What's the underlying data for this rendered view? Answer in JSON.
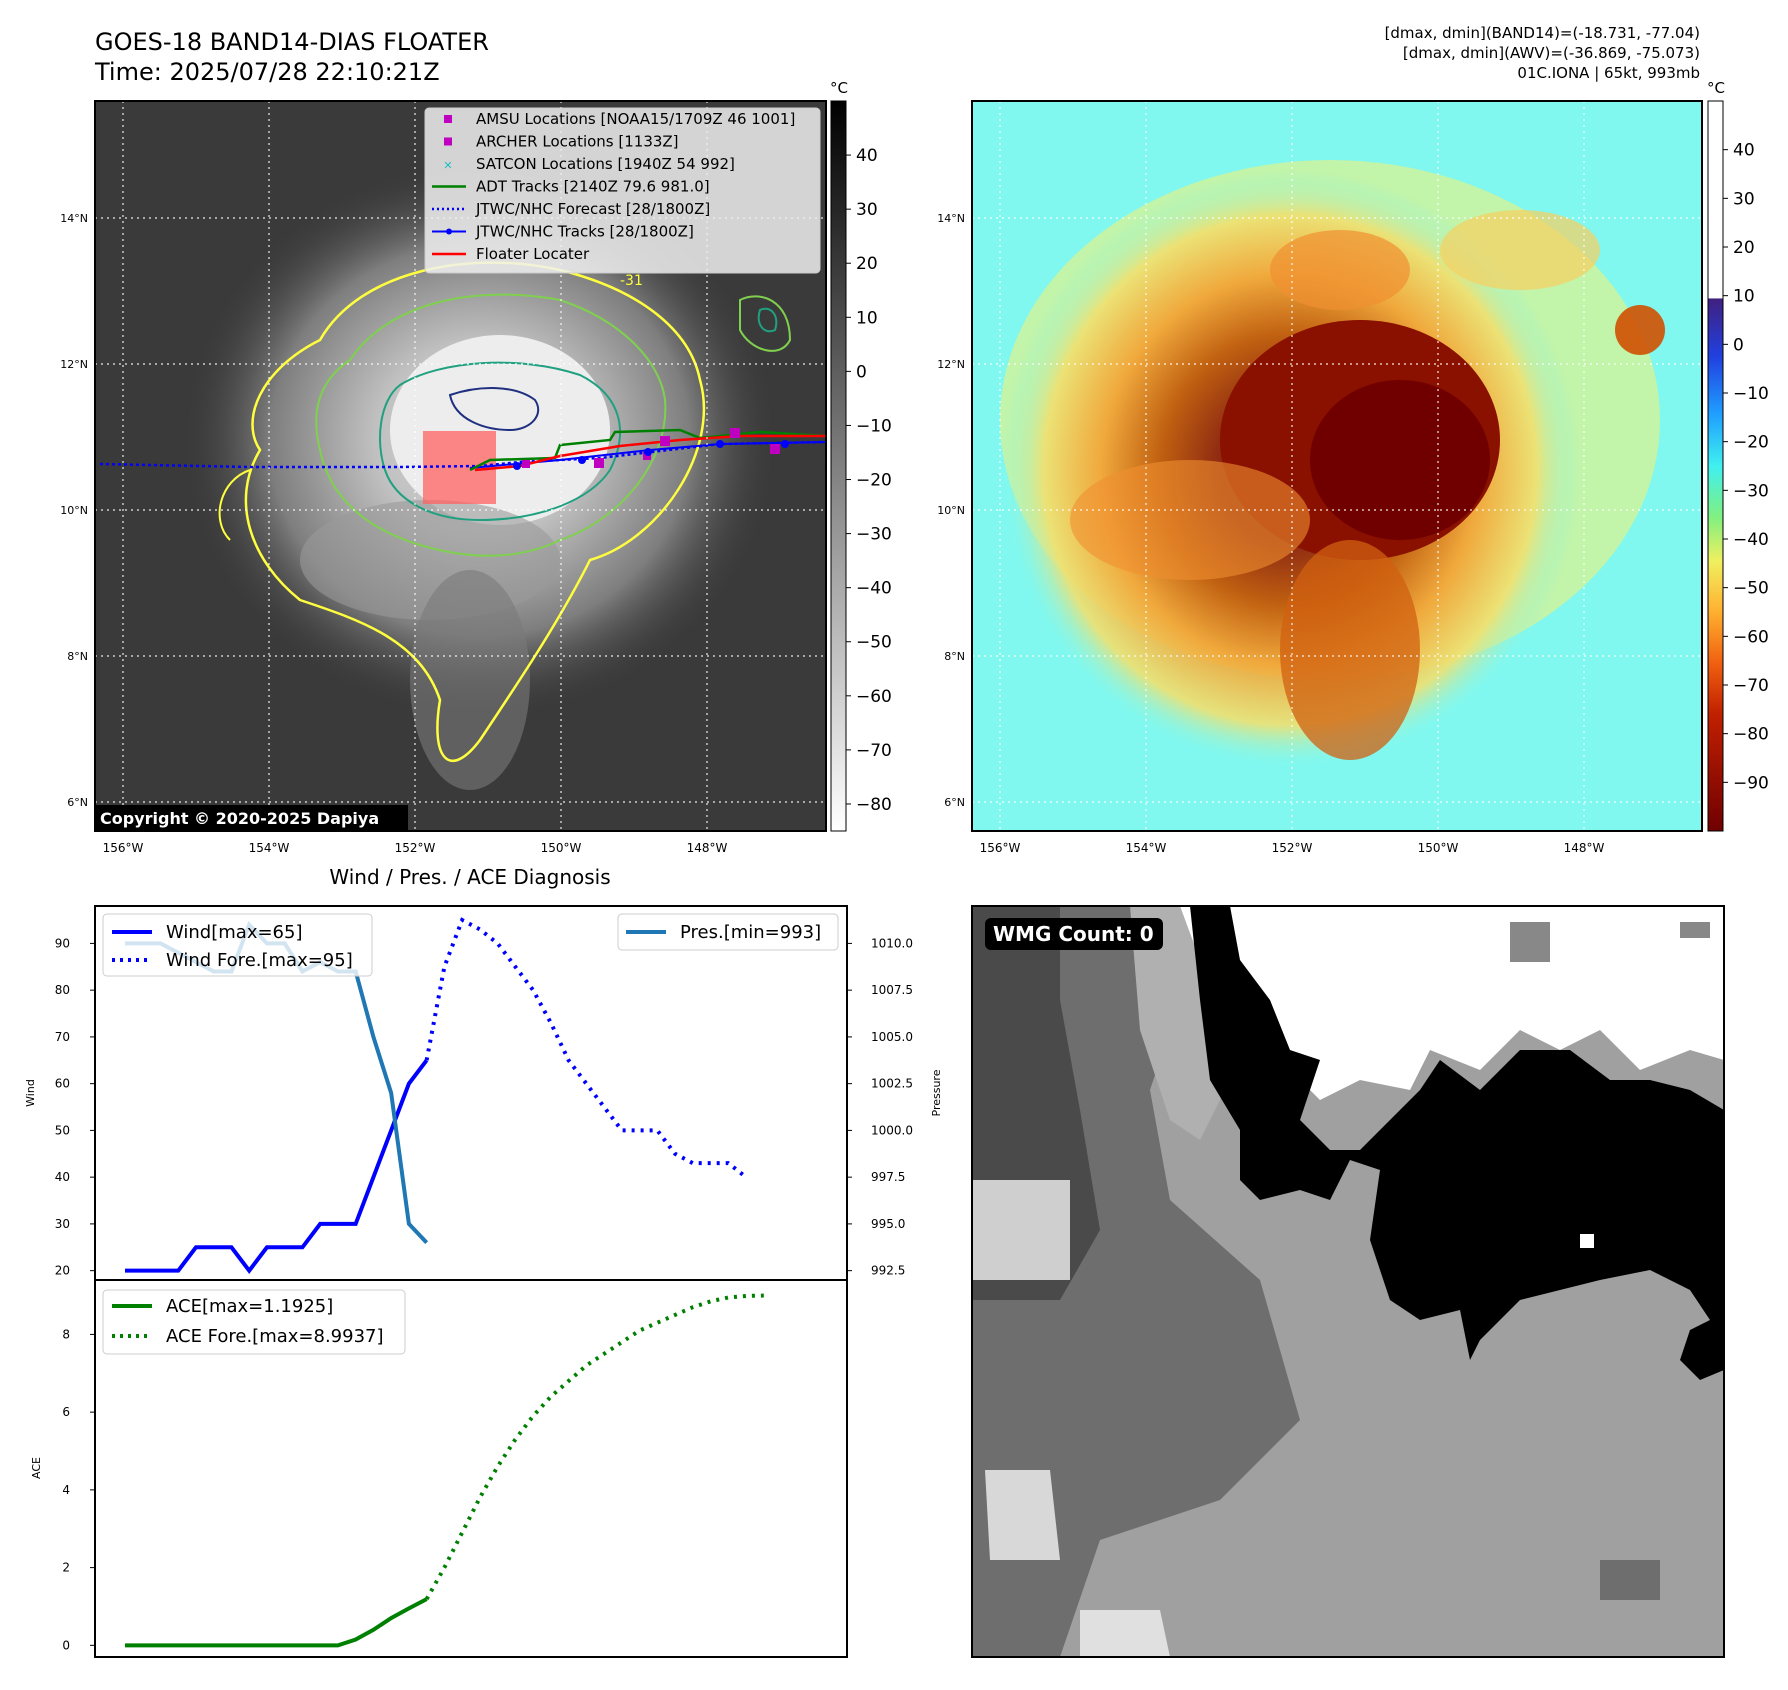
{
  "header": {
    "title_line1": "GOES-18 BAND14-DIAS FLOATER",
    "title_line2": "Time: 2025/07/28 22:10:21Z",
    "info_line1": "[dmax, dmin](BAND14)=(-18.731, -77.04)",
    "info_line2": "[dmax, dmin](AWV)=(-36.869, -75.073)",
    "info_line3": "01C.IONA | 65kt, 993mb"
  },
  "map": {
    "lat_labels": [
      "14°N",
      "12°N",
      "10°N",
      "8°N",
      "6°N"
    ],
    "lon_labels": [
      "156°W",
      "154°W",
      "152°W",
      "150°W",
      "148°W"
    ],
    "copyright": "Copyright © 2020-2025 Dapiya",
    "contour_label": "-31",
    "legend": [
      {
        "label": "AMSU Locations [NOAA15/1709Z 46 1001]",
        "color": "#c000c0",
        "marker": "square"
      },
      {
        "label": "ARCHER Locations [1133Z]",
        "color": "#c000c0",
        "marker": "square"
      },
      {
        "label": "SATCON Locations [1940Z 54 992]",
        "color": "#20c0c0",
        "marker": "x"
      },
      {
        "label": "ADT Tracks [2140Z 79.6 981.0]",
        "color": "#008000",
        "marker": "line"
      },
      {
        "label": "JTWC/NHC Forecast [28/1800Z]",
        "color": "#0000ff",
        "marker": "dotted"
      },
      {
        "label": "JTWC/NHC Tracks [28/1800Z]",
        "color": "#0000ff",
        "marker": "line-dot"
      },
      {
        "label": "Floater Locater",
        "color": "#ff0000",
        "marker": "line"
      }
    ]
  },
  "colorbar_gray": {
    "unit": "°C",
    "ticks": [
      "40",
      "30",
      "20",
      "10",
      "0",
      "−10",
      "−20",
      "−30",
      "−40",
      "−50",
      "−60",
      "−70",
      "−80"
    ]
  },
  "colorbar_color": {
    "unit": "°C",
    "ticks": [
      "40",
      "30",
      "20",
      "10",
      "0",
      "−10",
      "−20",
      "−30",
      "−40",
      "−50",
      "−60",
      "−70",
      "−80",
      "−90"
    ]
  },
  "wind_panel": {
    "title": "Wind / Pres. / ACE Diagnosis",
    "ylabel_left": "Wind",
    "ylabel_right": "Pressure",
    "left_ticks": [
      "90",
      "80",
      "70",
      "60",
      "50",
      "40",
      "30",
      "20"
    ],
    "right_ticks": [
      "1010.0",
      "1007.5",
      "1005.0",
      "1002.5",
      "1000.0",
      "997.5",
      "995.0",
      "992.5"
    ],
    "legend_wind": "Wind[max=65]",
    "legend_wind_fore": "Wind Fore.[max=95]",
    "legend_pres": "Pres.[min=993]"
  },
  "ace_panel": {
    "ylabel": "ACE",
    "ticks": [
      "8",
      "6",
      "4",
      "2",
      "0"
    ],
    "legend_ace": "ACE[max=1.1925]",
    "legend_ace_fore": "ACE Fore.[max=8.9937]"
  },
  "wmg_panel": {
    "badge": "WMG Count: 0"
  },
  "colors": {
    "wind": "#0000ff",
    "pressure": "#1f77b4",
    "ace": "#008000",
    "floater": "#ff0000",
    "contour_yellow": "#ffff40",
    "contour_green": "#80d050",
    "contour_teal": "#20a080",
    "contour_navy": "#203080"
  },
  "chart_data": [
    {
      "type": "line",
      "title": "Wind / Pres. / ACE Diagnosis",
      "ylabel": "Wind",
      "ylim": [
        18,
        98
      ],
      "y2label": "Pressure",
      "y2lim": [
        992,
        1012
      ],
      "series": [
        {
          "name": "Wind[max=65]",
          "axis": "left",
          "style": "solid",
          "x": [
            0,
            1,
            2,
            3,
            4,
            5,
            6,
            7,
            8,
            9,
            10,
            11,
            12,
            13,
            14,
            15,
            16,
            17
          ],
          "y": [
            20,
            20,
            20,
            20,
            25,
            25,
            25,
            20,
            25,
            25,
            25,
            30,
            30,
            30,
            40,
            50,
            60,
            65
          ]
        },
        {
          "name": "Wind Fore.[max=95]",
          "axis": "left",
          "style": "dotted",
          "x": [
            17,
            18,
            19,
            20,
            21,
            22,
            23,
            24,
            25,
            26,
            27,
            28,
            29,
            30,
            31,
            32,
            33,
            34,
            35,
            36,
            37,
            38,
            39
          ],
          "y": [
            65,
            85,
            95,
            93,
            90,
            85,
            80,
            73,
            65,
            60,
            55,
            50,
            50,
            50,
            45,
            43,
            43,
            43,
            40,
            null,
            null,
            null,
            null
          ]
        },
        {
          "name": "Pres.[min=993]",
          "axis": "right",
          "style": "solid",
          "x": [
            0,
            1,
            2,
            3,
            4,
            5,
            6,
            7,
            8,
            9,
            10,
            11,
            12,
            13,
            14,
            15,
            16,
            17
          ],
          "y": [
            1010.0,
            1010.0,
            1010.0,
            1009.5,
            1009.0,
            1008.5,
            1008.5,
            1011.0,
            1010.0,
            1010.0,
            1008.5,
            1009.0,
            1008.5,
            1008.5,
            1005.0,
            1002.0,
            995.0,
            994.0
          ]
        }
      ]
    },
    {
      "type": "line",
      "ylabel": "ACE",
      "ylim": [
        -0.3,
        9.4
      ],
      "series": [
        {
          "name": "ACE[max=1.1925]",
          "style": "solid",
          "x": [
            0,
            2,
            4,
            6,
            8,
            10,
            12,
            13,
            14,
            15,
            16,
            17
          ],
          "y": [
            0,
            0,
            0,
            0,
            0,
            0,
            0,
            0.15,
            0.4,
            0.7,
            0.95,
            1.19
          ]
        },
        {
          "name": "ACE Fore.[max=8.9937]",
          "style": "dotted",
          "x": [
            17,
            18,
            19,
            20,
            21,
            22,
            23,
            24,
            25,
            26,
            27,
            28,
            29,
            30,
            31,
            32,
            33,
            34,
            35,
            36
          ],
          "y": [
            1.19,
            2.0,
            2.9,
            3.8,
            4.6,
            5.3,
            5.9,
            6.4,
            6.8,
            7.2,
            7.5,
            7.8,
            8.1,
            8.3,
            8.5,
            8.7,
            8.85,
            8.95,
            8.99,
            9.0
          ]
        }
      ]
    }
  ]
}
